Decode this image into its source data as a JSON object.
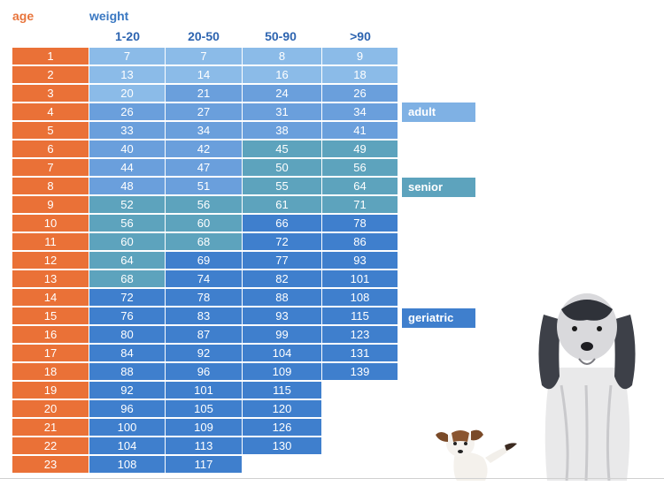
{
  "chart_data": {
    "type": "table",
    "row_header": "age",
    "column_group_header": "weight",
    "columns": [
      "1-20",
      "20-50",
      "50-90",
      ">90"
    ],
    "ages": [
      "1",
      "2",
      "3",
      "4",
      "5",
      "6",
      "7",
      "8",
      "9",
      "10",
      "11",
      "12",
      "13",
      "14",
      "15",
      "16",
      "17",
      "18",
      "19",
      "20",
      "21",
      "22",
      "23"
    ],
    "rows": [
      [
        "7",
        "7",
        "8",
        "9"
      ],
      [
        "13",
        "14",
        "16",
        "18"
      ],
      [
        "20",
        "21",
        "24",
        "26"
      ],
      [
        "26",
        "27",
        "31",
        "34"
      ],
      [
        "33",
        "34",
        "38",
        "41"
      ],
      [
        "40",
        "42",
        "45",
        "49"
      ],
      [
        "44",
        "47",
        "50",
        "56"
      ],
      [
        "48",
        "51",
        "55",
        "64"
      ],
      [
        "52",
        "56",
        "61",
        "71"
      ],
      [
        "56",
        "60",
        "66",
        "78"
      ],
      [
        "60",
        "68",
        "72",
        "86"
      ],
      [
        "64",
        "69",
        "77",
        "93"
      ],
      [
        "68",
        "74",
        "82",
        "101"
      ],
      [
        "72",
        "78",
        "88",
        "108"
      ],
      [
        "76",
        "83",
        "93",
        "115"
      ],
      [
        "80",
        "87",
        "99",
        "123"
      ],
      [
        "84",
        "92",
        "104",
        "131"
      ],
      [
        "88",
        "96",
        "109",
        "139"
      ],
      [
        "92",
        "101",
        "115",
        ""
      ],
      [
        "96",
        "105",
        "120",
        ""
      ],
      [
        "100",
        "109",
        "126",
        ""
      ],
      [
        "104",
        "113",
        "130",
        ""
      ],
      [
        "108",
        "117",
        "",
        ""
      ]
    ],
    "stage_per_cell": [
      [
        "a",
        "a",
        "a",
        "a"
      ],
      [
        "a",
        "a",
        "a",
        "a"
      ],
      [
        "a",
        "b",
        "b",
        "b"
      ],
      [
        "b",
        "b",
        "b",
        "b"
      ],
      [
        "b",
        "b",
        "b",
        "b"
      ],
      [
        "b",
        "b",
        "s",
        "s"
      ],
      [
        "b",
        "b",
        "s",
        "s"
      ],
      [
        "b",
        "b",
        "s",
        "s"
      ],
      [
        "s",
        "s",
        "s",
        "s"
      ],
      [
        "s",
        "s",
        "g",
        "g"
      ],
      [
        "s",
        "s",
        "g",
        "g"
      ],
      [
        "s",
        "g",
        "g",
        "g"
      ],
      [
        "s",
        "g",
        "g",
        "g"
      ],
      [
        "g",
        "g",
        "g",
        "g"
      ],
      [
        "g",
        "g",
        "g",
        "g"
      ],
      [
        "g",
        "g",
        "g",
        "g"
      ],
      [
        "g",
        "g",
        "g",
        "g"
      ],
      [
        "g",
        "g",
        "g",
        "g"
      ],
      [
        "g",
        "g",
        "g",
        ""
      ],
      [
        "g",
        "g",
        "g",
        ""
      ],
      [
        "g",
        "g",
        "g",
        ""
      ],
      [
        "g",
        "g",
        "g",
        ""
      ],
      [
        "g",
        "g",
        "",
        ""
      ]
    ],
    "legend": [
      {
        "key": "adult",
        "label": "adult",
        "color": "#7fb1e4"
      },
      {
        "key": "senior",
        "label": "senior",
        "color": "#5da3bd"
      },
      {
        "key": "geriatric",
        "label": "geriatric",
        "color": "#3f7fcd"
      }
    ],
    "colors": {
      "age": "#ea7137",
      "young": "#8bbbe8",
      "adult": "#6a9fdc",
      "senior": "#5da3bd",
      "geriatric": "#3f7fcd"
    }
  }
}
